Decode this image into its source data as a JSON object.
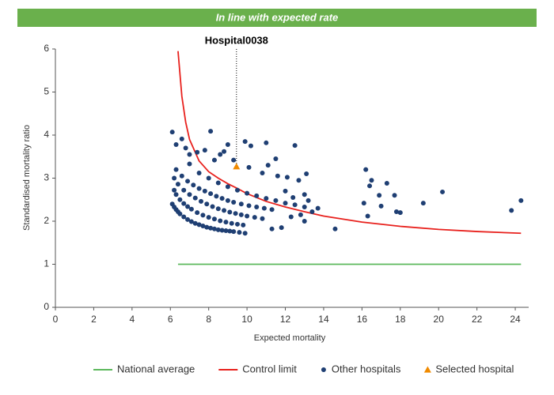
{
  "chart_data": {
    "type": "scatter",
    "banner": "In line with expected rate",
    "banner_color": "#6ab04c",
    "x_label": "Expected mortality",
    "y_label": "Standardised mortality ratio",
    "annotation": "Hospital0038",
    "xlim": [
      0,
      24.7
    ],
    "xticks": [
      0,
      2,
      4,
      6,
      8,
      10,
      12,
      14,
      16,
      18,
      20,
      22,
      24
    ],
    "ylim": [
      0,
      6
    ],
    "yticks": [
      0,
      1,
      2,
      3,
      4,
      5,
      6
    ],
    "series": [
      {
        "name": "National average",
        "color": "#5cb85c",
        "marker": "line",
        "x": [
          6.4,
          24.3
        ],
        "y": [
          1,
          1
        ]
      },
      {
        "name": "Control limit",
        "color": "#e8211d",
        "marker": "line",
        "x": [
          6.4,
          6.6,
          6.8,
          7,
          7.5,
          8,
          8.5,
          9,
          9.5,
          10,
          11,
          12,
          13,
          14,
          16,
          18,
          20,
          22,
          24.3
        ],
        "y": [
          5.95,
          4.9,
          4.3,
          3.9,
          3.4,
          3.15,
          3.0,
          2.87,
          2.76,
          2.64,
          2.46,
          2.33,
          2.22,
          2.12,
          1.98,
          1.88,
          1.81,
          1.76,
          1.72
        ]
      },
      {
        "name": "Other hospitals",
        "color": "#1f3f73",
        "marker": "circle",
        "x": [
          6.1,
          6.2,
          6.3,
          6.4,
          6.5,
          6.7,
          6.9,
          7.1,
          7.3,
          7.5,
          7.7,
          7.9,
          8.1,
          8.3,
          8.5,
          8.7,
          8.9,
          9.1,
          9.3,
          9.6,
          9.9,
          6.2,
          6.3,
          6.5,
          6.7,
          6.9,
          7.1,
          7.4,
          7.7,
          8,
          8.3,
          8.6,
          8.9,
          9.2,
          9.5,
          9.8,
          6.2,
          6.4,
          6.7,
          7,
          7.3,
          7.6,
          7.9,
          8.2,
          8.5,
          8.8,
          9.1,
          9.4,
          9.7,
          10,
          10.4,
          10.8,
          6.3,
          6.6,
          6.9,
          7.2,
          7.5,
          7.8,
          8.1,
          8.4,
          8.7,
          9,
          9.3,
          9.7,
          10.1,
          10.5,
          10.9,
          11.3,
          7,
          7.5,
          8,
          8.5,
          9,
          9.5,
          10,
          10.5,
          11,
          11.5,
          12,
          12.5,
          13,
          6.1,
          6.3,
          6.6,
          6.8,
          7,
          7.4,
          7.8,
          8.1,
          8.3,
          8.6,
          9,
          8.8,
          9.3,
          9.9,
          10.2,
          11,
          12.5,
          10.1,
          10.8,
          11.1,
          11.6,
          12.1,
          12.7,
          13.1,
          11.5,
          12,
          12.4,
          13,
          13.2,
          13.4,
          13.7,
          13,
          11.8,
          11.3,
          12.3,
          12.8,
          14.6,
          16.2,
          16.4,
          16.5,
          16.3,
          16.1,
          16.9,
          17.3,
          17.7,
          17.8,
          18,
          17,
          19.2,
          20.2,
          23.8,
          24.3
        ],
        "y": [
          2.4,
          2.33,
          2.27,
          2.22,
          2.17,
          2.1,
          2.04,
          1.99,
          1.95,
          1.92,
          1.89,
          1.86,
          1.84,
          1.82,
          1.8,
          1.79,
          1.78,
          1.77,
          1.76,
          1.74,
          1.72,
          2.72,
          2.62,
          2.5,
          2.41,
          2.34,
          2.28,
          2.2,
          2.14,
          2.09,
          2.05,
          2.01,
          1.98,
          1.95,
          1.93,
          1.91,
          3.0,
          2.86,
          2.72,
          2.62,
          2.54,
          2.46,
          2.4,
          2.34,
          2.29,
          2.25,
          2.21,
          2.18,
          2.15,
          2.12,
          2.09,
          2.06,
          3.2,
          3.05,
          2.93,
          2.84,
          2.76,
          2.7,
          2.64,
          2.58,
          2.53,
          2.48,
          2.44,
          2.4,
          2.36,
          2.33,
          2.3,
          2.27,
          3.33,
          3.12,
          3.0,
          2.89,
          2.8,
          2.72,
          2.65,
          2.59,
          2.53,
          2.48,
          2.42,
          2.38,
          2.33,
          4.07,
          3.78,
          3.91,
          3.7,
          3.55,
          3.6,
          3.65,
          4.09,
          3.42,
          3.55,
          3.78,
          3.62,
          3.42,
          3.85,
          3.75,
          3.82,
          3.76,
          3.25,
          3.12,
          3.3,
          3.05,
          3.02,
          2.95,
          3.1,
          3.45,
          2.7,
          2.55,
          2.62,
          2.48,
          2.22,
          2.3,
          2.0,
          1.85,
          1.82,
          2.1,
          2.15,
          1.82,
          3.2,
          2.82,
          2.95,
          2.12,
          2.42,
          2.6,
          2.88,
          2.6,
          2.22,
          2.2,
          2.35,
          2.42,
          2.68,
          2.25,
          2.48
        ]
      },
      {
        "name": "Selected hospital",
        "color": "#f08a00",
        "marker": "triangle",
        "x": [
          9.45
        ],
        "y": [
          3.27
        ]
      }
    ]
  }
}
